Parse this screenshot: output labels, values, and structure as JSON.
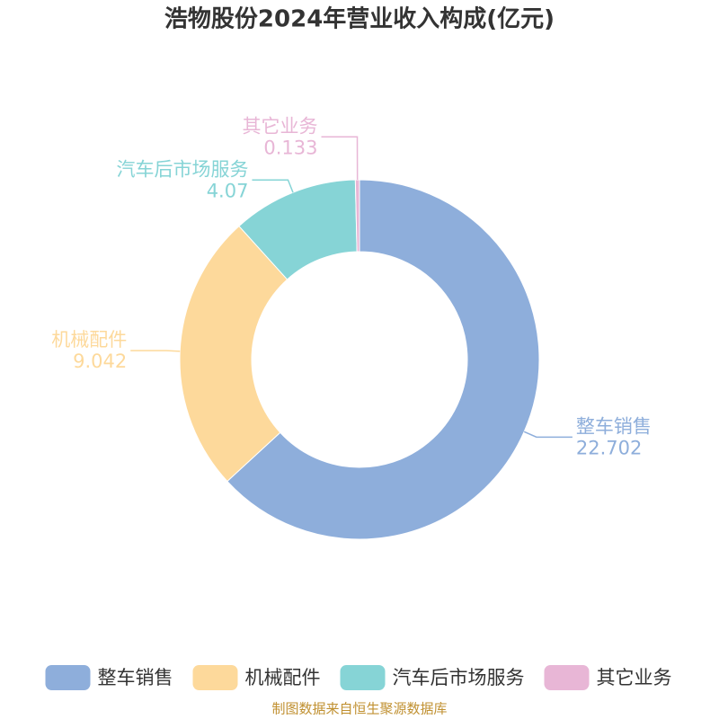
{
  "chart_data": {
    "type": "pie",
    "title": "浩物股份2024年营业收入构成(亿元)",
    "categories": [
      "整车销售",
      "机械配件",
      "汽车后市场服务",
      "其它业务"
    ],
    "values": [
      22.702,
      9.042,
      4.07,
      0.133
    ],
    "colors": [
      "#8eaedb",
      "#fdd99b",
      "#86d4d6",
      "#e8b6d6"
    ],
    "source": "制图数据来自恒生聚源数据库"
  }
}
